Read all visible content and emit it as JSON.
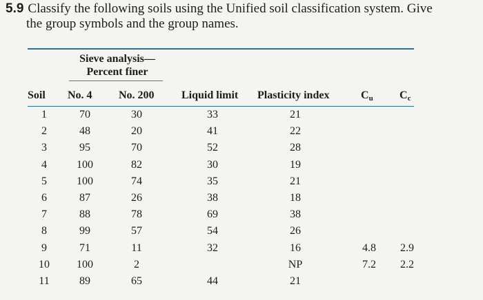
{
  "problem": {
    "number": "5.9",
    "line1": "Classify the following soils using the Unified soil classification system. Give",
    "line2": "the group symbols and the group names."
  },
  "table": {
    "sieve_title_line1": "Sieve analysis—",
    "sieve_title_line2": "Percent finer",
    "headers": {
      "soil": "Soil",
      "no4": "No. 4",
      "no200": "No. 200",
      "liquid_limit": "Liquid limit",
      "plasticity_index": "Plasticity index",
      "cu_main": "C",
      "cu_sub": "u",
      "cc_main": "C",
      "cc_sub": "c"
    },
    "rows": [
      {
        "soil": "1",
        "no4": "70",
        "no200": "30",
        "ll": "33",
        "pi": "21",
        "cu": "",
        "cc": ""
      },
      {
        "soil": "2",
        "no4": "48",
        "no200": "20",
        "ll": "41",
        "pi": "22",
        "cu": "",
        "cc": ""
      },
      {
        "soil": "3",
        "no4": "95",
        "no200": "70",
        "ll": "52",
        "pi": "28",
        "cu": "",
        "cc": ""
      },
      {
        "soil": "4",
        "no4": "100",
        "no200": "82",
        "ll": "30",
        "pi": "19",
        "cu": "",
        "cc": ""
      },
      {
        "soil": "5",
        "no4": "100",
        "no200": "74",
        "ll": "35",
        "pi": "21",
        "cu": "",
        "cc": ""
      },
      {
        "soil": "6",
        "no4": "87",
        "no200": "26",
        "ll": "38",
        "pi": "18",
        "cu": "",
        "cc": ""
      },
      {
        "soil": "7",
        "no4": "88",
        "no200": "78",
        "ll": "69",
        "pi": "38",
        "cu": "",
        "cc": ""
      },
      {
        "soil": "8",
        "no4": "99",
        "no200": "57",
        "ll": "54",
        "pi": "26",
        "cu": "",
        "cc": ""
      },
      {
        "soil": "9",
        "no4": "71",
        "no200": "11",
        "ll": "32",
        "pi": "16",
        "cu": "4.8",
        "cc": "2.9"
      },
      {
        "soil": "10",
        "no4": "100",
        "no200": "2",
        "ll": "",
        "pi": "NP",
        "cu": "7.2",
        "cc": "2.2"
      },
      {
        "soil": "11",
        "no4": "89",
        "no200": "65",
        "ll": "44",
        "pi": "21",
        "cu": "",
        "cc": ""
      }
    ]
  }
}
